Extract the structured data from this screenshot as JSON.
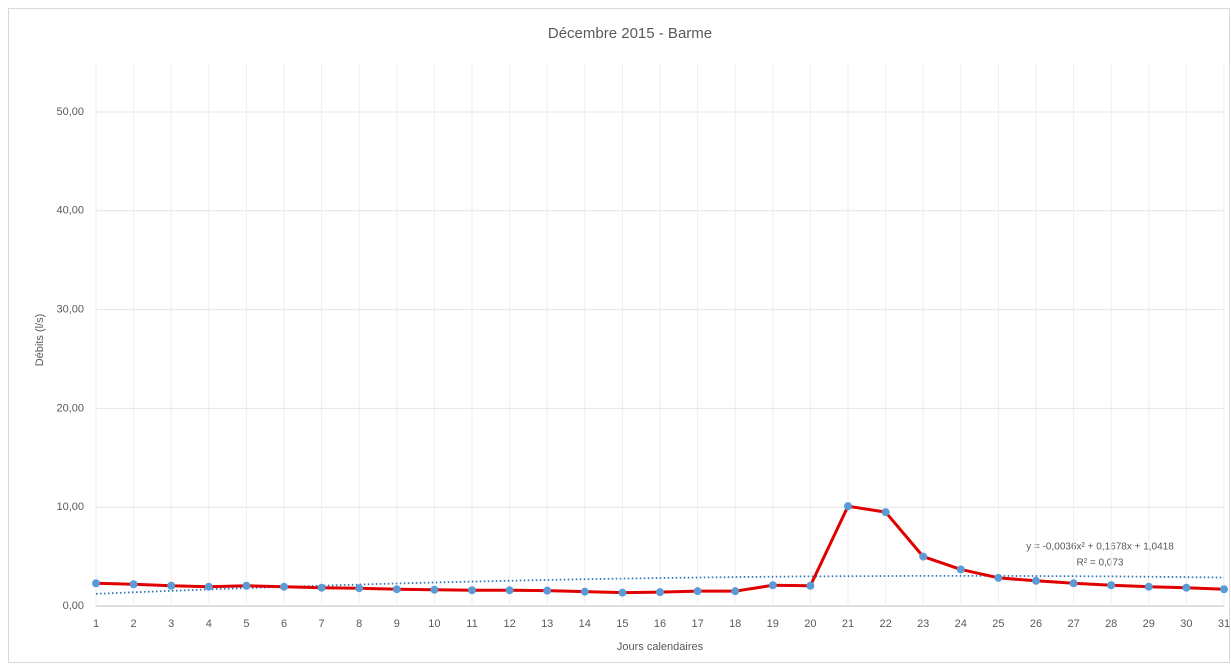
{
  "chart_data": {
    "type": "line",
    "title": "Décembre 2015 - Barme",
    "xlabel": "Jours calendaires",
    "ylabel": "Débits (l/s)",
    "x": [
      1,
      2,
      3,
      4,
      5,
      6,
      7,
      8,
      9,
      10,
      11,
      12,
      13,
      14,
      15,
      16,
      17,
      18,
      19,
      20,
      21,
      22,
      23,
      24,
      25,
      26,
      27,
      28,
      29,
      30,
      31
    ],
    "series": [
      {
        "color": "#e00000",
        "marker_color": "#5b9bd5",
        "values": [
          2.3,
          2.2,
          2.05,
          1.95,
          2.05,
          1.95,
          1.85,
          1.8,
          1.7,
          1.65,
          1.6,
          1.6,
          1.55,
          1.45,
          1.35,
          1.4,
          1.5,
          1.5,
          2.1,
          2.05,
          10.1,
          9.5,
          5.0,
          3.7,
          2.85,
          2.55,
          2.3,
          2.1,
          1.95,
          1.85,
          1.7
        ]
      }
    ],
    "trendline": {
      "type": "polynomial",
      "order": 2,
      "color": "#2e75b6",
      "annotation": [
        "y = -0,0036x² + 0,1678x + 1,0418",
        "R² = 0,073"
      ]
    },
    "xlim": [
      1,
      31
    ],
    "xticks": [
      1,
      2,
      3,
      4,
      5,
      6,
      7,
      8,
      9,
      10,
      11,
      12,
      13,
      14,
      15,
      16,
      17,
      18,
      19,
      20,
      21,
      22,
      23,
      24,
      25,
      26,
      27,
      28,
      29,
      30,
      31
    ],
    "ylim": [
      0,
      55
    ],
    "yticks": [
      {
        "value": 0,
        "label": "0,00"
      },
      {
        "value": 10,
        "label": "10,00"
      },
      {
        "value": 20,
        "label": "20,00"
      },
      {
        "value": 30,
        "label": "30,00"
      },
      {
        "value": 40,
        "label": "40,00"
      },
      {
        "value": 50,
        "label": "50,00"
      }
    ],
    "grid": true
  }
}
